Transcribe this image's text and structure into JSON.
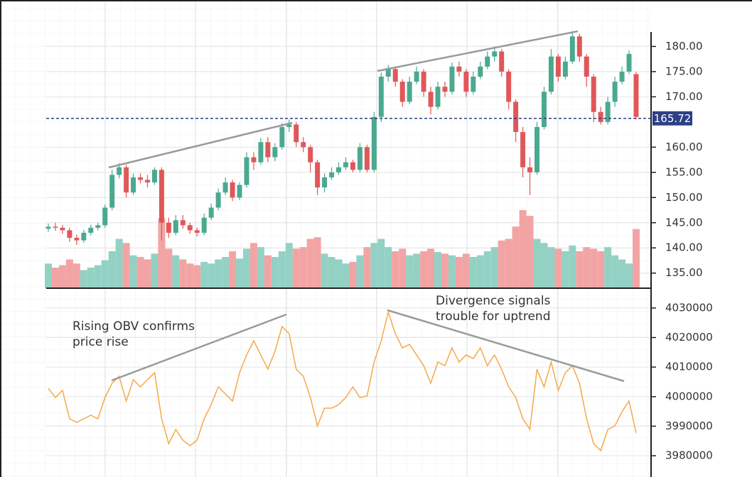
{
  "chart_data": [
    {
      "type": "candlestick",
      "open": [
        143.8,
        144.2,
        144,
        143.5,
        142,
        141.5,
        143,
        144,
        144.5,
        148,
        154.5,
        156,
        151,
        154,
        153.5,
        153,
        155.5,
        145,
        143,
        145.5,
        144.5,
        143.5,
        143,
        146,
        148,
        151,
        153,
        150,
        152.5,
        158,
        157,
        161,
        158,
        160,
        164,
        164.5,
        161,
        160,
        157,
        152,
        154,
        155,
        156,
        157,
        155.5,
        160,
        155.5,
        166,
        174,
        175.5,
        173,
        169,
        173,
        175,
        171,
        168,
        172,
        171,
        176,
        175,
        171,
        174,
        176,
        178,
        179,
        175,
        169,
        163,
        156,
        155,
        164,
        171,
        178,
        174,
        177,
        182,
        178,
        174,
        167,
        165,
        169,
        173,
        175,
        174.5
      ],
      "high": [
        144.8,
        145,
        144.6,
        144,
        142.6,
        143.6,
        144.6,
        145,
        148.6,
        155.5,
        156.8,
        156.5,
        154.8,
        154.8,
        154.5,
        156,
        156,
        146,
        146.5,
        146.5,
        145,
        144,
        146.8,
        148.8,
        151.8,
        154,
        153.5,
        153,
        159,
        159,
        161.8,
        162,
        160.8,
        164.8,
        165.5,
        165,
        162,
        160.5,
        157.5,
        154.8,
        156,
        157,
        158,
        157.5,
        160.8,
        160.5,
        167,
        174.8,
        176.3,
        176,
        173.5,
        174,
        176,
        175.5,
        172,
        173,
        173,
        176.8,
        177,
        175.5,
        175,
        177,
        179,
        180,
        179.5,
        175.5,
        169.5,
        164,
        158,
        165,
        172,
        179.5,
        178.5,
        178,
        183,
        182.5,
        178.5,
        174.5,
        168,
        170,
        174,
        176,
        179.2,
        175
      ],
      "low": [
        143.2,
        143.4,
        142.8,
        141.2,
        140.6,
        141,
        142.5,
        143.5,
        144,
        147.5,
        153.8,
        150,
        150.5,
        152.8,
        152,
        152.5,
        141.5,
        142,
        142.5,
        143.8,
        142.8,
        142.3,
        142.5,
        145.5,
        147.5,
        150.5,
        149.3,
        149.5,
        152,
        155.5,
        156.5,
        157,
        157.2,
        159.5,
        163,
        160,
        159,
        155,
        150.5,
        151,
        153.5,
        154.5,
        155.5,
        155,
        155,
        155,
        155,
        165,
        173,
        172,
        168,
        168.5,
        172.5,
        170,
        166.5,
        167.5,
        170,
        170.5,
        174,
        170,
        170.5,
        173.5,
        175.5,
        177,
        174,
        167.5,
        161,
        154,
        150.5,
        154.5,
        163.5,
        170.5,
        173,
        173.5,
        176.5,
        177,
        172,
        165,
        164.5,
        164.5,
        168,
        172.5,
        174.5,
        165.5
      ],
      "close": [
        144.2,
        144,
        143.5,
        142,
        141.5,
        143,
        144,
        144.5,
        148,
        154.5,
        156,
        151,
        154,
        153.5,
        153,
        155.5,
        145,
        143,
        145.5,
        144.5,
        143.5,
        143,
        146,
        148,
        151,
        153,
        150,
        152.5,
        158,
        157,
        161,
        158,
        160,
        164,
        164.5,
        161,
        160,
        157,
        152,
        154,
        155,
        156,
        157,
        155.5,
        160,
        155.5,
        166,
        174,
        175.5,
        173,
        169,
        173,
        175,
        171,
        168,
        172,
        171,
        176,
        175,
        171,
        174,
        176,
        178,
        179,
        175,
        169,
        163,
        156,
        155,
        164,
        171,
        178,
        174,
        177,
        182,
        178,
        174,
        167,
        165,
        169,
        173,
        175,
        178.5,
        166
      ],
      "volume": [
        30,
        25,
        28,
        35,
        30,
        22,
        25,
        28,
        34,
        45,
        60,
        55,
        40,
        38,
        35,
        42,
        85,
        48,
        40,
        35,
        30,
        28,
        32,
        30,
        35,
        38,
        45,
        36,
        48,
        55,
        50,
        40,
        38,
        45,
        55,
        48,
        50,
        60,
        62,
        42,
        38,
        35,
        30,
        32,
        40,
        50,
        55,
        60,
        50,
        45,
        48,
        40,
        42,
        45,
        48,
        44,
        42,
        40,
        38,
        42,
        38,
        40,
        45,
        50,
        58,
        60,
        75,
        95,
        88,
        60,
        55,
        50,
        48,
        45,
        52,
        45,
        50,
        48,
        45,
        50,
        40,
        35,
        30,
        72
      ],
      "up_color": "#4aa98f",
      "down_color": "#e0575a",
      "volume_up_color": "#93d1c4",
      "volume_down_color": "#f2a4a4",
      "ylim": [
        132,
        183.3
      ],
      "yticks": [
        {
          "value": 135,
          "label": "135.00"
        },
        {
          "value": 140,
          "label": "140.00"
        },
        {
          "value": 145,
          "label": "145.00"
        },
        {
          "value": 150,
          "label": "150.00"
        },
        {
          "value": 155,
          "label": "155.00"
        },
        {
          "value": 160,
          "label": "160.00"
        },
        {
          "value": 170,
          "label": "170.00"
        },
        {
          "value": 175,
          "label": "175.00"
        },
        {
          "value": 180,
          "label": "180.00"
        }
      ],
      "last_price": 165.72,
      "last_price_color": "#2d3f86"
    },
    {
      "type": "line",
      "series": [
        {
          "color": "#f5a94a",
          "values": [
            4002800,
            3999700,
            4002100,
            3992500,
            3991300,
            3992500,
            3993700,
            3992500,
            3999700,
            4004500,
            4006900,
            3998500,
            4005700,
            4003300,
            4005700,
            4008100,
            3992500,
            3984100,
            3988900,
            3985300,
            3983400,
            3985300,
            3992500,
            3997300,
            4003300,
            4000900,
            3998500,
            4008100,
            4014100,
            4018900,
            4014100,
            4009300,
            4015300,
            4023700,
            4021300,
            4009300,
            4006900,
            3999700,
            3990100,
            3996100,
            3996100,
            3997300,
            3999700,
            4003300,
            3999700,
            4000200,
            4011700,
            4018900,
            4028600,
            4021300,
            4016500,
            4017700,
            4014100,
            4010500,
            4004500,
            4011700,
            4010500,
            4016500,
            4011700,
            4014100,
            4012900,
            4016500,
            4010500,
            4014100,
            4009300,
            4003300,
            3999700,
            3992500,
            3988900,
            4009300,
            4003300,
            4011700,
            4002100,
            4008100,
            4010500,
            4004500,
            3992500,
            3984100,
            3981700,
            3988900,
            3990100,
            3994900,
            3998500,
            3987700
          ]
        }
      ],
      "ylim": [
        3972800,
        4036700
      ],
      "yticks": [
        3980000,
        3990000,
        4000000,
        4010000,
        4020000,
        4030000
      ],
      "annotations": [
        [
          "Rising OBV confirms",
          "price rise"
        ],
        [
          "Divergence signals",
          "trouble for uptrend"
        ]
      ]
    }
  ]
}
